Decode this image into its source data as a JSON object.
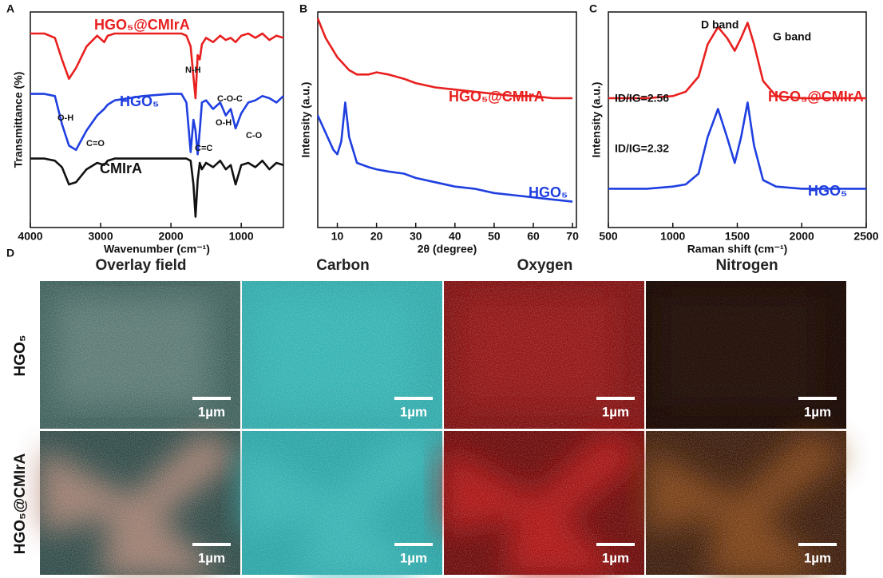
{
  "chart_data": [
    {
      "type": "line",
      "panel_label": "A",
      "x_label": "Wavenumber (cm⁻¹)",
      "y_label": "Transmittance (%)",
      "xlim": [
        4000,
        400
      ],
      "xticks": [
        4000,
        3000,
        2000,
        1000
      ],
      "ylim": [
        0,
        100
      ],
      "x": [
        4000,
        3800,
        3650,
        3550,
        3450,
        3350,
        3200,
        3050,
        2950,
        2900,
        2800,
        2400,
        2000,
        1850,
        1780,
        1720,
        1680,
        1650,
        1620,
        1590,
        1560,
        1500,
        1400,
        1300,
        1220,
        1150,
        1080,
        1000,
        900,
        800,
        700,
        600,
        500,
        400
      ],
      "series": [
        {
          "name": "HGO₅@CMIrA",
          "color": "#e8201f",
          "values": [
            90,
            90,
            88,
            78,
            69,
            74,
            84,
            89,
            86,
            89,
            90,
            90,
            90,
            90,
            89,
            84,
            70,
            60,
            80,
            78,
            85,
            88,
            86,
            89,
            87,
            88,
            86,
            89,
            90,
            88,
            90,
            87,
            89,
            88
          ]
        },
        {
          "name": "HGO₅",
          "color": "#1f3fe0",
          "values": [
            62,
            62,
            61,
            48,
            38,
            36,
            45,
            52,
            55,
            57,
            59,
            61,
            62,
            62,
            58,
            35,
            50,
            45,
            34,
            45,
            58,
            59,
            55,
            58,
            52,
            55,
            46,
            53,
            58,
            59,
            61,
            60,
            58,
            61
          ]
        },
        {
          "name": "CMIrA",
          "color": "#111111",
          "values": [
            32,
            32,
            31,
            28,
            20,
            21,
            27,
            30,
            29,
            31,
            32,
            32,
            32,
            32,
            32,
            31,
            20,
            5,
            22,
            30,
            27,
            30,
            28,
            31,
            27,
            29,
            20,
            29,
            30,
            28,
            31,
            27,
            30,
            29
          ]
        }
      ],
      "annotations": [
        "N-H",
        "O-H",
        "C=O",
        "C=C",
        "C-O-C",
        "O-H",
        "C-O"
      ]
    },
    {
      "type": "line",
      "panel_label": "B",
      "x_label": "2θ (degree)",
      "y_label": "Intensity (a.u.)",
      "xlim": [
        5,
        71
      ],
      "xticks": [
        10,
        20,
        30,
        40,
        50,
        60,
        70
      ],
      "ylim": [
        0,
        100
      ],
      "x": [
        5,
        7,
        9,
        10,
        11,
        12,
        13,
        15,
        18,
        20,
        23,
        27,
        30,
        35,
        40,
        45,
        50,
        55,
        60,
        65,
        70
      ],
      "series": [
        {
          "name": "HGO₅@CMIrA",
          "color": "#e8201f",
          "values": [
            97,
            88,
            82,
            79,
            77,
            75,
            73,
            71,
            71,
            72,
            71,
            69,
            67,
            65,
            64,
            63,
            62,
            61,
            61,
            60,
            60
          ]
        },
        {
          "name": "HGO₅",
          "color": "#1f3fe0",
          "values": [
            52,
            44,
            36,
            34,
            40,
            58,
            42,
            30,
            28,
            27,
            26,
            25,
            23,
            21,
            19,
            18,
            16,
            15,
            14,
            13,
            12
          ]
        }
      ],
      "annotations": []
    },
    {
      "type": "line",
      "panel_label": "C",
      "x_label": "Raman shift (cm⁻¹)",
      "y_label": "Intensity (a.u.)",
      "xlim": [
        500,
        2500
      ],
      "xticks": [
        500,
        1000,
        1500,
        2000,
        2500
      ],
      "ylim": [
        0,
        100
      ],
      "x": [
        500,
        800,
        1000,
        1100,
        1200,
        1270,
        1350,
        1420,
        1480,
        1530,
        1580,
        1630,
        1700,
        1800,
        2000,
        2500
      ],
      "series": [
        {
          "name": "HGO₅@CMIrA",
          "color": "#e8201f",
          "values": [
            60,
            60,
            61,
            63,
            70,
            85,
            93,
            88,
            82,
            88,
            95,
            85,
            68,
            61,
            60,
            60
          ]
        },
        {
          "name": "HGO₅",
          "color": "#1f3fe0",
          "values": [
            18,
            18,
            19,
            20,
            25,
            42,
            55,
            42,
            30,
            42,
            58,
            38,
            22,
            19,
            18,
            18
          ]
        }
      ],
      "annotations": [
        "D band",
        "G band",
        "ID/IG=2.56",
        "ID/IG=2.32"
      ]
    }
  ],
  "panel_d": {
    "panel_label": "D",
    "columns": [
      "Overlay field",
      "Carbon",
      "Oxygen",
      "Nitrogen"
    ],
    "rows": [
      "HGO₅",
      "HGO₅@CMIrA"
    ],
    "scale_bar": "1µm"
  }
}
